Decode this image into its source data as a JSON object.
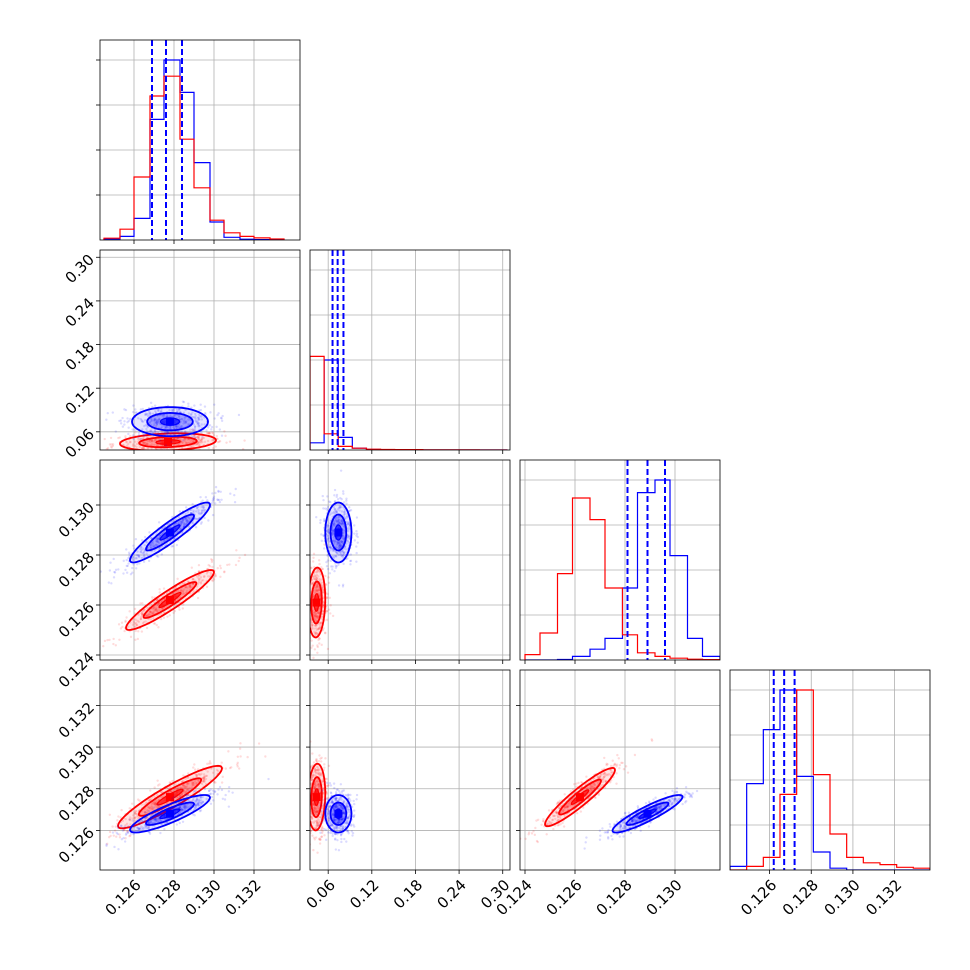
{
  "chart_data": {
    "type": "corner",
    "title": "",
    "grid": true,
    "parameters": [
      {
        "index": 0,
        "range": [
          0.1243,
          0.1343
        ],
        "ticks": [
          0.126,
          0.128,
          0.13,
          0.132
        ],
        "tick_labels": [
          "0.126",
          "0.128",
          "0.130",
          "0.132"
        ]
      },
      {
        "index": 1,
        "range": [
          0.035,
          0.31
        ],
        "ticks": [
          0.06,
          0.12,
          0.18,
          0.24,
          0.3
        ],
        "tick_labels": [
          "0.06",
          "0.12",
          "0.18",
          "0.24",
          "0.30"
        ]
      },
      {
        "index": 2,
        "range": [
          0.1238,
          0.1318
        ],
        "ticks": [
          0.124,
          0.126,
          0.128,
          0.13
        ],
        "tick_labels": [
          "0.124",
          "0.126",
          "0.128",
          "0.130"
        ]
      },
      {
        "index": 3,
        "range": [
          0.1241,
          0.1337
        ],
        "ticks": [
          0.126,
          0.128,
          0.13,
          0.132
        ],
        "tick_labels": [
          "0.126",
          "0.128",
          "0.130",
          "0.132"
        ]
      }
    ],
    "series": [
      {
        "color": "#0000ff",
        "color_name": "blue",
        "marginal_quantiles": [
          [
            0.1269,
            0.1276,
            0.1284
          ],
          [
            0.066,
            0.073,
            0.081
          ],
          [
            0.1281,
            0.1289,
            0.1296
          ],
          [
            0.1262,
            0.1267,
            0.1272
          ]
        ],
        "medians": [
          0.1276,
          0.073,
          0.1289,
          0.1267
        ],
        "hist": [
          {
            "edges": [
              0.1245,
              0.1253,
              0.126,
              0.1268,
              0.1275,
              0.1283,
              0.129,
              0.1298,
              0.1305,
              0.1313,
              0.132,
              0.1328,
              0.1335
            ],
            "counts": [
              0.005,
              0.02,
              0.12,
              0.67,
              1.0,
              0.82,
              0.43,
              0.1,
              0.015,
              0.004,
              0.002,
              0.001
            ]
          },
          {
            "edges": [
              0.035,
              0.0544,
              0.0738,
              0.0932,
              0.1126,
              0.132,
              0.1514,
              0.1708,
              0.1902,
              0.2096,
              0.229,
              0.2484,
              0.2678,
              0.2872,
              0.3066
            ],
            "counts": [
              0.04,
              0.5,
              0.07,
              0.01,
              0.003,
              0.001,
              0.0,
              0.0,
              0.0,
              0.0,
              0.0,
              0.0,
              0.0,
              0.0
            ]
          },
          {
            "edges": [
              0.124,
              0.1246,
              0.1253,
              0.1259,
              0.1266,
              0.1272,
              0.1279,
              0.1285,
              0.1292,
              0.1298,
              0.1305,
              0.1311,
              0.1318
            ],
            "counts": [
              0.0,
              0.0,
              0.003,
              0.02,
              0.06,
              0.12,
              0.4,
              0.93,
              1.0,
              0.58,
              0.12,
              0.02
            ]
          },
          {
            "edges": [
              0.1241,
              0.1249,
              0.1257,
              0.1265,
              0.1273,
              0.1281,
              0.1289,
              0.1297,
              0.1305,
              0.1313,
              0.1321,
              0.1329,
              0.1337
            ],
            "counts": [
              0.02,
              0.48,
              0.78,
              1.0,
              0.52,
              0.1,
              0.01,
              0.0,
              0.0,
              0.0,
              0.0,
              0.0
            ]
          }
        ],
        "contours": [
          {
            "x": 0,
            "y": 1,
            "center": [
              0.1278,
              0.074
            ],
            "sigma": [
              0.00095,
              0.01
            ],
            "rho": 0.0
          },
          {
            "x": 0,
            "y": 2,
            "center": [
              0.1278,
              0.1289
            ],
            "sigma": [
              0.001,
              0.0006
            ],
            "rho": 0.92
          },
          {
            "x": 1,
            "y": 2,
            "center": [
              0.074,
              0.1289
            ],
            "sigma": [
              0.009,
              0.0006
            ],
            "rho": 0.0
          },
          {
            "x": 0,
            "y": 3,
            "center": [
              0.1278,
              0.1268
            ],
            "sigma": [
              0.001,
              0.00045
            ],
            "rho": 0.86
          },
          {
            "x": 1,
            "y": 3,
            "center": [
              0.074,
              0.1268
            ],
            "sigma": [
              0.009,
              0.00045
            ],
            "rho": 0.0
          },
          {
            "x": 2,
            "y": 3,
            "center": [
              0.1289,
              0.1268
            ],
            "sigma": [
              0.0007,
              0.00045
            ],
            "rho": 0.9
          }
        ]
      },
      {
        "color": "#ff0000",
        "color_name": "red",
        "medians": [
          0.1276,
          0.045,
          0.1262,
          0.1276
        ],
        "hist": [
          {
            "edges": [
              0.1245,
              0.1253,
              0.126,
              0.1268,
              0.1275,
              0.1283,
              0.129,
              0.1298,
              0.1305,
              0.1313,
              0.132,
              0.1328,
              0.1335
            ],
            "counts": [
              0.01,
              0.06,
              0.35,
              0.8,
              0.91,
              0.56,
              0.29,
              0.11,
              0.04,
              0.02,
              0.012,
              0.006
            ]
          },
          {
            "edges": [
              0.035,
              0.0544,
              0.0738,
              0.0932,
              0.1126,
              0.132,
              0.1514,
              0.1708,
              0.1902,
              0.2096,
              0.229,
              0.2484,
              0.2678,
              0.2872,
              0.3066
            ],
            "counts": [
              0.52,
              0.09,
              0.02,
              0.01,
              0.004,
              0.003,
              0.002,
              0.002,
              0.001,
              0.001,
              0.001,
              0.001,
              0.0,
              0.0
            ]
          },
          {
            "edges": [
              0.124,
              0.1246,
              0.1253,
              0.1259,
              0.1266,
              0.1272,
              0.1279,
              0.1285,
              0.1292,
              0.1298,
              0.1305,
              0.1311,
              0.1318
            ],
            "counts": [
              0.03,
              0.15,
              0.48,
              0.9,
              0.78,
              0.4,
              0.14,
              0.04,
              0.02,
              0.01,
              0.004,
              0.002
            ]
          },
          {
            "edges": [
              0.1241,
              0.1249,
              0.1257,
              0.1265,
              0.1273,
              0.1281,
              0.1289,
              0.1297,
              0.1305,
              0.1313,
              0.1321,
              0.1329,
              0.1337
            ],
            "counts": [
              0.0,
              0.02,
              0.07,
              0.42,
              1.0,
              0.53,
              0.2,
              0.07,
              0.04,
              0.03,
              0.015,
              0.01
            ]
          }
        ],
        "contours": [
          {
            "x": 0,
            "y": 1,
            "center": [
              0.1277,
              0.046
            ],
            "sigma": [
              0.0012,
              0.006
            ],
            "rho": 0.2
          },
          {
            "x": 0,
            "y": 2,
            "center": [
              0.1278,
              0.1262
            ],
            "sigma": [
              0.0011,
              0.0006
            ],
            "rho": 0.93
          },
          {
            "x": 1,
            "y": 2,
            "center": [
              0.044,
              0.1261
            ],
            "sigma": [
              0.006,
              0.0007
            ],
            "rho": 0.1
          },
          {
            "x": 0,
            "y": 3,
            "center": [
              0.1278,
              0.1276
            ],
            "sigma": [
              0.0013,
              0.00075
            ],
            "rho": 0.92
          },
          {
            "x": 1,
            "y": 3,
            "center": [
              0.044,
              0.1276
            ],
            "sigma": [
              0.006,
              0.0008
            ],
            "rho": 0.1
          },
          {
            "x": 2,
            "y": 3,
            "center": [
              0.1262,
              0.1276
            ],
            "sigma": [
              0.0007,
              0.0007
            ],
            "rho": 0.93
          }
        ]
      }
    ]
  }
}
